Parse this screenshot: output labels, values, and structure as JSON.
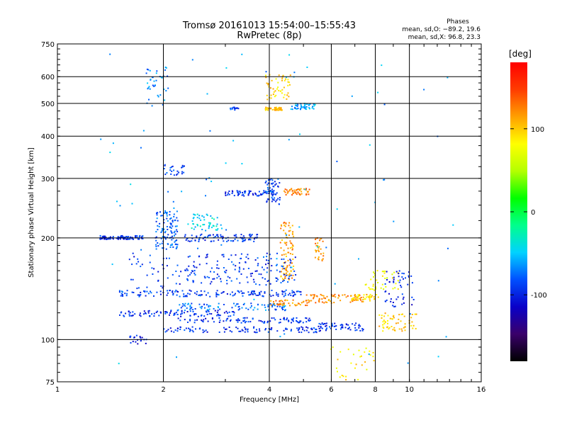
{
  "chart_data": {
    "type": "scatter",
    "title": "Tromsø 20161013 15:54:00–15:55:43",
    "subtitle": "RwPretec (8p)",
    "xlabel": "Frequency [MHz]",
    "ylabel": "Stationary phase Virtual Height [km]",
    "x_scale": "log",
    "y_scale": "log",
    "xlim": [
      1,
      16
    ],
    "ylim": [
      75,
      750
    ],
    "x_ticks": [
      1,
      2,
      4,
      6,
      8,
      10,
      16
    ],
    "y_ticks": [
      75,
      100,
      200,
      300,
      400,
      500,
      600,
      750
    ],
    "grid": true,
    "stats": {
      "header": "Phases",
      "line1": "mean, sd,O: −89.2, 19.6",
      "line2": "mean, sd,X:  96.8, 23.3"
    },
    "colorbar": {
      "label": "[deg]",
      "range": [
        -180,
        180
      ],
      "ticks": [
        100,
        0,
        -100
      ],
      "colors": [
        "#000000",
        "#3a006a",
        "#0a00c8",
        "#0050ff",
        "#00d2ff",
        "#00ff8c",
        "#00ff00",
        "#b4ff00",
        "#ffff00",
        "#ffa000",
        "#ff3c00",
        "#ff0000"
      ]
    },
    "clusters": [
      {
        "f1": 1.32,
        "f2": 1.75,
        "h1": 198,
        "h2": 203,
        "n": 90,
        "phase": -95
      },
      {
        "f1": 1.9,
        "f2": 2.2,
        "h1": 185,
        "h2": 245,
        "n": 110,
        "phase": -80
      },
      {
        "f1": 1.78,
        "f2": 2.08,
        "h1": 490,
        "h2": 640,
        "n": 40,
        "phase": -70
      },
      {
        "f1": 2.0,
        "f2": 2.3,
        "h1": 305,
        "h2": 330,
        "n": 25,
        "phase": -90
      },
      {
        "f1": 2.4,
        "f2": 2.95,
        "h1": 210,
        "h2": 235,
        "n": 50,
        "phase": -45
      },
      {
        "f1": 2.3,
        "f2": 3.7,
        "h1": 195,
        "h2": 205,
        "n": 90,
        "phase": -90
      },
      {
        "f1": 3.0,
        "f2": 4.1,
        "h1": 266,
        "h2": 276,
        "n": 60,
        "phase": -95
      },
      {
        "f1": 3.9,
        "f2": 4.3,
        "h1": 250,
        "h2": 300,
        "n": 60,
        "phase": -85
      },
      {
        "f1": 4.4,
        "f2": 5.2,
        "h1": 268,
        "h2": 280,
        "n": 50,
        "phase": 125
      },
      {
        "f1": 3.9,
        "f2": 4.6,
        "h1": 500,
        "h2": 610,
        "n": 50,
        "phase": 95
      },
      {
        "f1": 3.9,
        "f2": 4.4,
        "h1": 477,
        "h2": 487,
        "n": 40,
        "phase": 105
      },
      {
        "f1": 4.6,
        "f2": 5.4,
        "h1": 480,
        "h2": 500,
        "n": 50,
        "phase": -60
      },
      {
        "f1": 3.1,
        "f2": 3.3,
        "h1": 478,
        "h2": 488,
        "n": 15,
        "phase": -90
      },
      {
        "f1": 4.3,
        "f2": 4.7,
        "h1": 150,
        "h2": 225,
        "n": 90,
        "phase": 115
      },
      {
        "f1": 5.4,
        "f2": 5.7,
        "h1": 170,
        "h2": 200,
        "n": 30,
        "phase": 120
      },
      {
        "f1": 1.5,
        "f2": 5.0,
        "h1": 134,
        "h2": 140,
        "n": 160,
        "phase": -90
      },
      {
        "f1": 1.5,
        "f2": 3.2,
        "h1": 117,
        "h2": 122,
        "n": 100,
        "phase": -95
      },
      {
        "f1": 2.2,
        "f2": 4.5,
        "h1": 122,
        "h2": 128,
        "n": 90,
        "phase": -75
      },
      {
        "f1": 2.2,
        "f2": 5.3,
        "h1": 112,
        "h2": 116,
        "n": 90,
        "phase": -95
      },
      {
        "f1": 2.0,
        "f2": 5.6,
        "h1": 105,
        "h2": 109,
        "n": 100,
        "phase": -95
      },
      {
        "f1": 4.0,
        "f2": 5.2,
        "h1": 126,
        "h2": 131,
        "n": 40,
        "phase": 120
      },
      {
        "f1": 5.0,
        "f2": 7.4,
        "h1": 128,
        "h2": 136,
        "n": 70,
        "phase": 125
      },
      {
        "f1": 6.8,
        "f2": 8.2,
        "h1": 130,
        "h2": 136,
        "n": 40,
        "phase": 95
      },
      {
        "f1": 7.5,
        "f2": 9.3,
        "h1": 140,
        "h2": 160,
        "n": 40,
        "phase": 75
      },
      {
        "f1": 5.5,
        "f2": 7.4,
        "h1": 106,
        "h2": 112,
        "n": 60,
        "phase": -95
      },
      {
        "f1": 8.2,
        "f2": 10.5,
        "h1": 106,
        "h2": 120,
        "n": 60,
        "phase": 100
      },
      {
        "f1": 8.5,
        "f2": 10.3,
        "h1": 125,
        "h2": 160,
        "n": 50,
        "phase": -100
      },
      {
        "f1": 2.3,
        "f2": 4.8,
        "h1": 145,
        "h2": 180,
        "n": 160,
        "phase": -90
      },
      {
        "f1": 1.6,
        "f2": 2.3,
        "h1": 140,
        "h2": 180,
        "n": 40,
        "phase": -95
      },
      {
        "f1": 1.6,
        "f2": 1.8,
        "h1": 97,
        "h2": 103,
        "n": 20,
        "phase": -100
      },
      {
        "f1": 5.8,
        "f2": 8.0,
        "h1": 76,
        "h2": 95,
        "n": 30,
        "phase": 90
      },
      {
        "f1": 1.3,
        "f2": 14.0,
        "h1": 80,
        "h2": 700,
        "n": 80,
        "phase": -60
      }
    ]
  }
}
